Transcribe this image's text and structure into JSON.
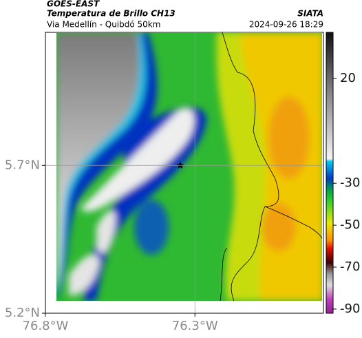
{
  "header": {
    "satellite": "GOES-EAST",
    "product": "Temperatura de Brillo CH13",
    "source": "SIATA",
    "route": "Via Medellín - Quibdó 50km",
    "timestamp": "2024-09-26 18:29"
  },
  "map": {
    "lon_range": [
      -76.8,
      -75.87
    ],
    "lat_range": [
      5.2,
      6.15
    ],
    "lon_ticks": [
      {
        "value": -76.8,
        "label": "76.8°W"
      },
      {
        "value": -76.3,
        "label": "76.3°W"
      }
    ],
    "lat_ticks": [
      {
        "value": 5.2,
        "label": "5.2°N"
      },
      {
        "value": 5.7,
        "label": "5.7°N"
      }
    ],
    "grid": true
  },
  "colorbar": {
    "lim": [
      -92,
      42
    ],
    "ticks": [
      20,
      -30,
      -50,
      -70,
      -90
    ]
  }
}
